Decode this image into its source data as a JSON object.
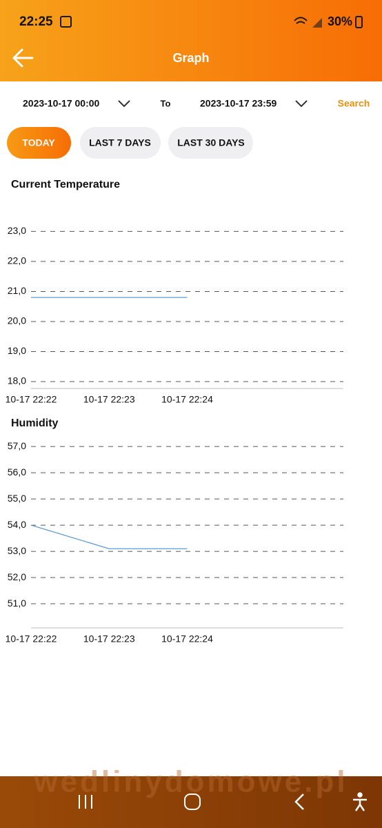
{
  "status_bar": {
    "time": "22:25",
    "battery": "30%"
  },
  "header": {
    "title": "Graph"
  },
  "filter": {
    "from": "2023-10-17 00:00",
    "to_label": "To",
    "to": "2023-10-17 23:59",
    "search": "Search",
    "buttons": [
      "TODAY",
      "LAST 7 DAYS",
      "LAST 30 DAYS"
    ]
  },
  "chart_data": [
    {
      "type": "line",
      "title": "Current Temperature",
      "categories": [
        "10-17 22:22",
        "10-17 22:23",
        "10-17 22:24",
        null
      ],
      "values": [
        20.8,
        20.8,
        20.8,
        null
      ],
      "color": "#5b9bd5",
      "ylim": [
        17.77,
        23.4
      ],
      "yticks": [
        {
          "value": 18,
          "label": "18,0"
        },
        {
          "value": 19,
          "label": "19,0"
        },
        {
          "value": 20,
          "label": "20,0"
        },
        {
          "value": 21,
          "label": "21,0"
        },
        {
          "value": 22,
          "label": "22,0"
        },
        {
          "value": 23,
          "label": "23,0"
        }
      ],
      "grid": true
    },
    {
      "type": "line",
      "title": "Humidity",
      "categories": [
        "10-17 22:22",
        "10-17 22:23",
        "10-17 22:24",
        null
      ],
      "values": [
        54.0,
        53.1,
        53.1,
        null
      ],
      "color": "#5b9bd5",
      "ylim": [
        50.08,
        57.45
      ],
      "yticks": [
        {
          "value": 51,
          "label": "51,0"
        },
        {
          "value": 52,
          "label": "52,0"
        },
        {
          "value": 53,
          "label": "53,0"
        },
        {
          "value": 54,
          "label": "54,0"
        },
        {
          "value": 55,
          "label": "55,0"
        },
        {
          "value": 56,
          "label": "56,0"
        },
        {
          "value": 57,
          "label": "57,0"
        }
      ],
      "grid": true
    }
  ],
  "watermark": "wedlinydomowe.pl"
}
